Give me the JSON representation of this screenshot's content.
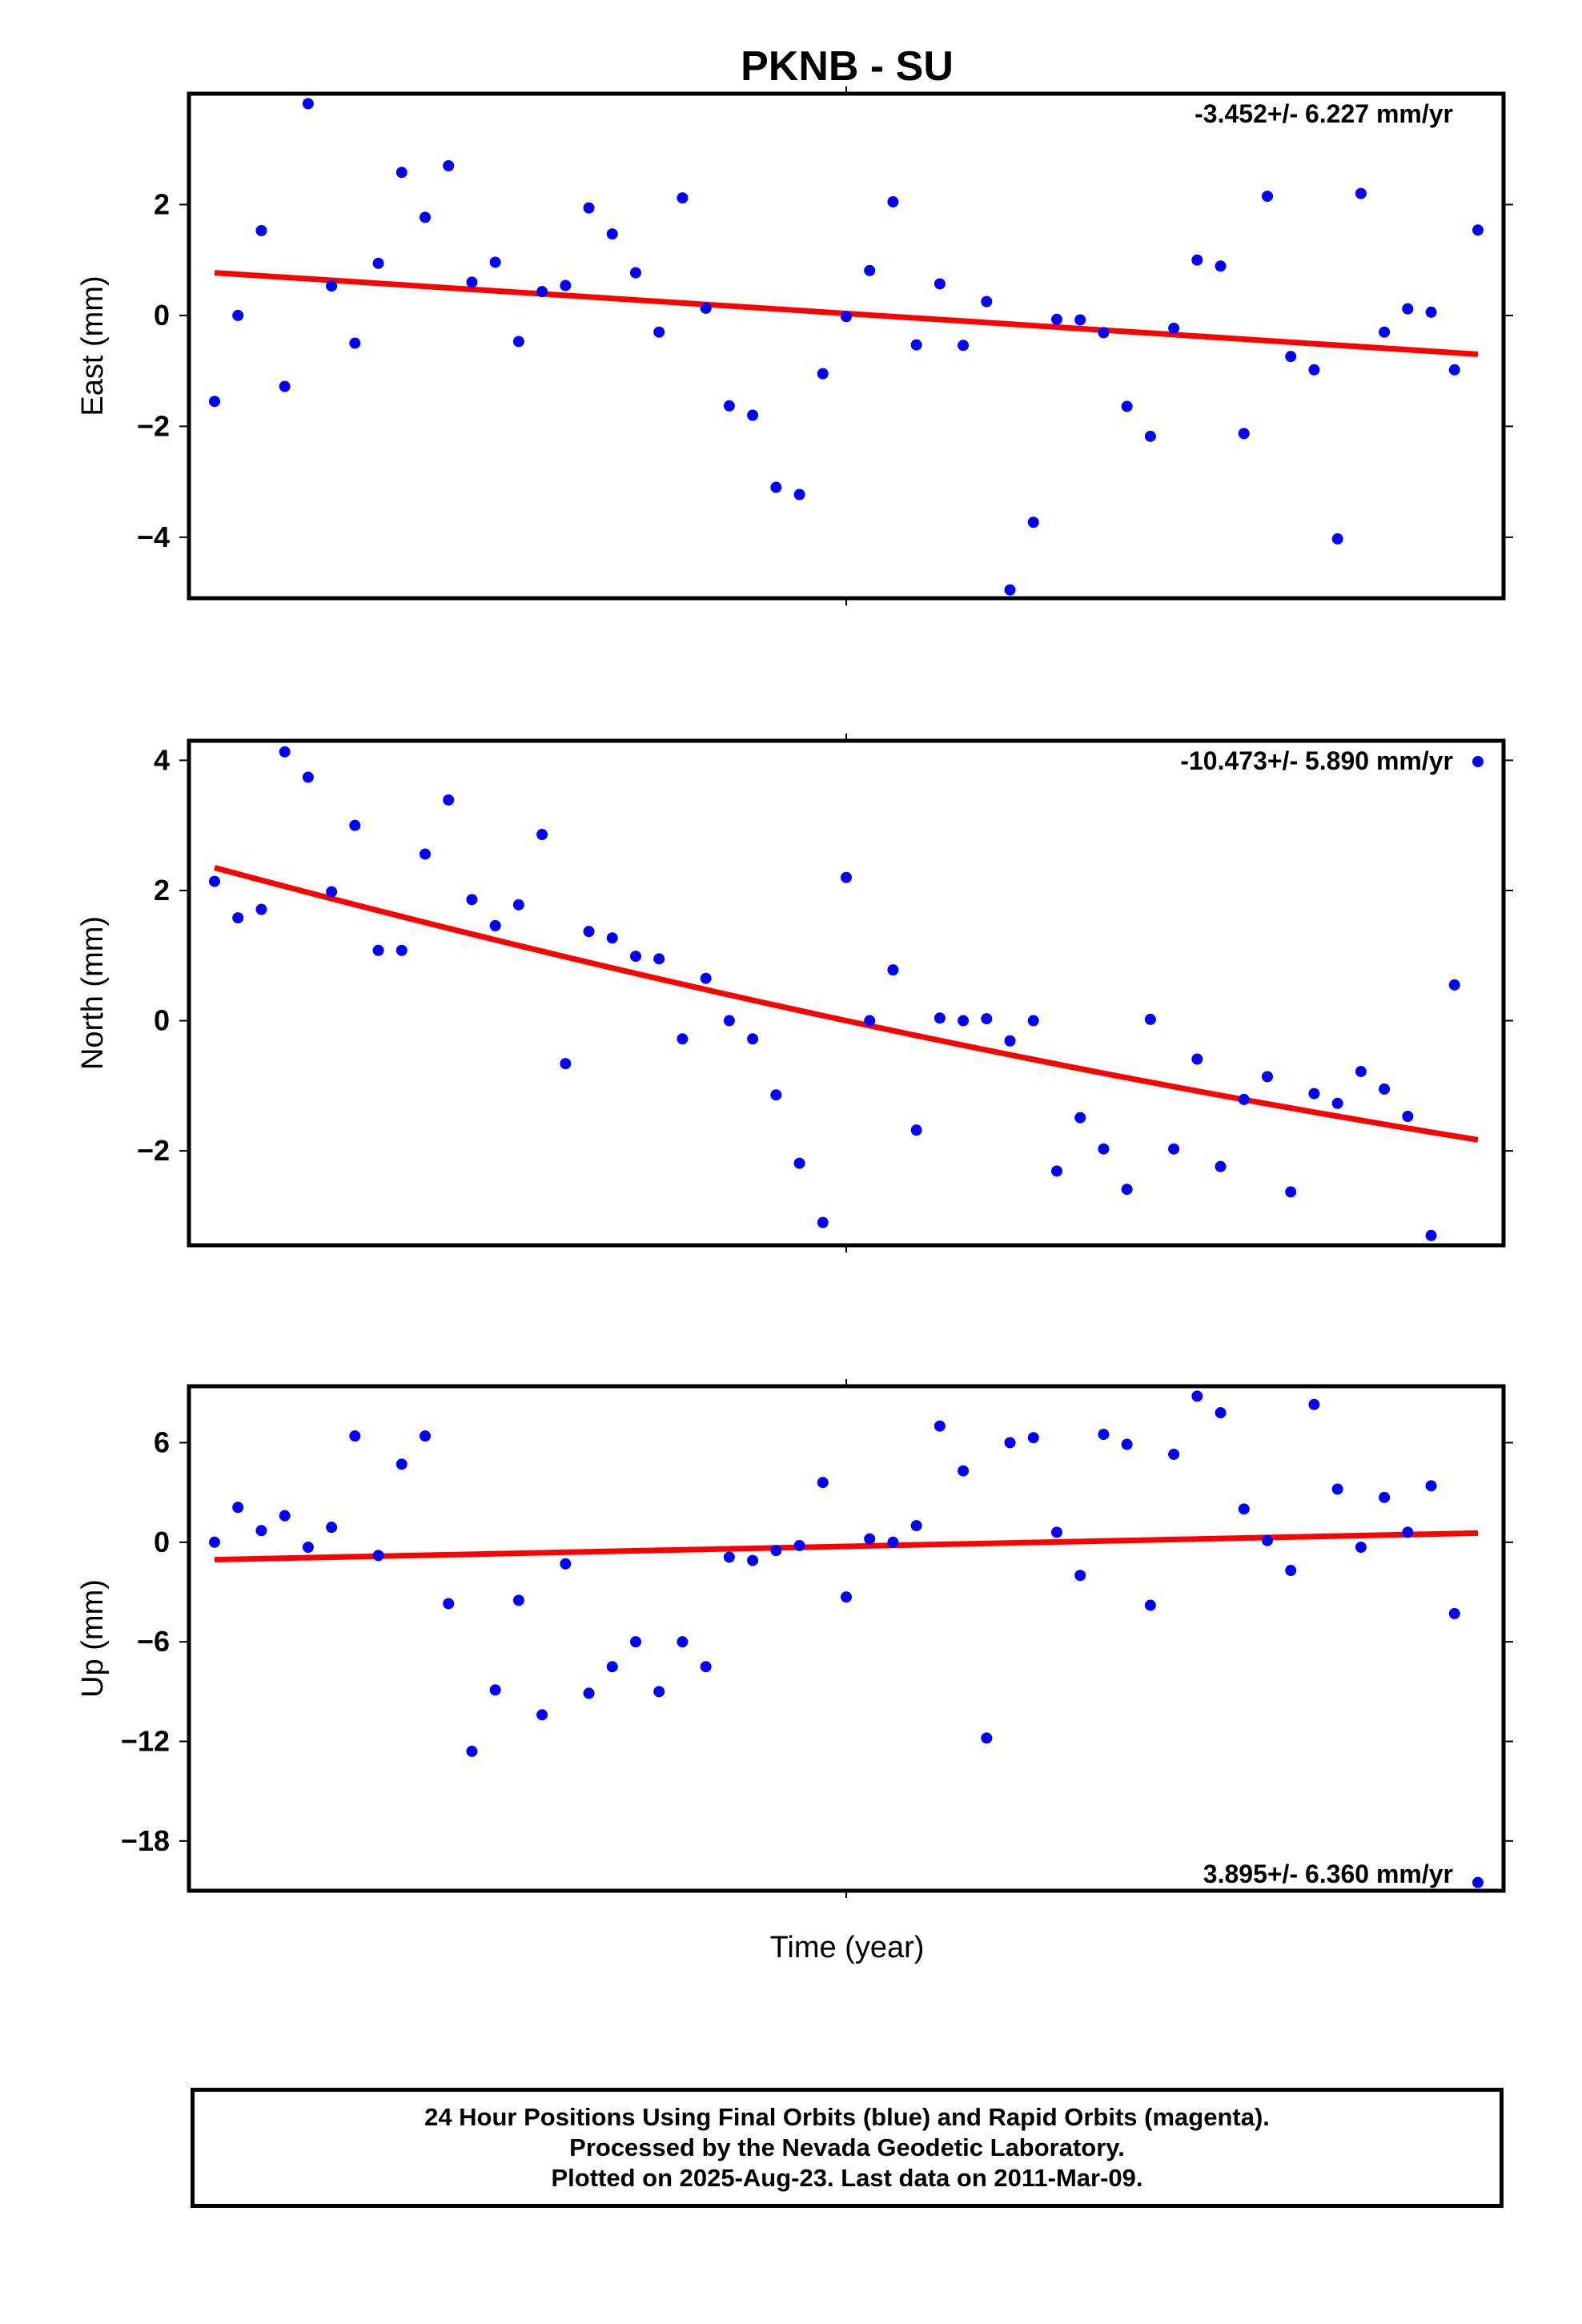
{
  "figure": {
    "title": "PKNB - SU",
    "xlabel": "Time (year)"
  },
  "colors": {
    "final_orbits": "#0000ff",
    "fit_line": "#ff0000",
    "axes": "#000000"
  },
  "footer": {
    "line1": "24 Hour Positions Using Final Orbits (blue) and Rapid Orbits (magenta).",
    "line2": "Processed by the Nevada Geodetic Laboratory.",
    "line3": "Plotted on 2025-Aug-23. Last data on 2011-Mar-09."
  },
  "chart_data": [
    {
      "type": "scatter",
      "panel": "east",
      "ylabel": "East (mm)",
      "rate_label": "-3.452+/- 6.227 mm/yr",
      "ylim": [
        -5.1,
        4.0
      ],
      "yticks": [
        2,
        0,
        -2,
        -4
      ],
      "x_ticks": [],
      "series": [
        {
          "name": "Final Orbits (blue)",
          "values": [
            -1.55,
            0.0,
            1.53,
            -1.28,
            3.82,
            0.53,
            -0.5,
            0.94,
            2.58,
            1.77,
            2.7,
            0.6,
            0.96,
            -0.47,
            0.43,
            0.54,
            1.94,
            1.47,
            0.77,
            -0.3,
            2.12,
            0.13,
            -1.63,
            -1.8,
            -3.1,
            -3.23,
            -1.05,
            -0.02,
            0.81,
            2.05,
            -0.53,
            0.57,
            -0.54,
            0.25,
            -4.95,
            -3.73,
            -0.07,
            -0.08,
            -0.31,
            -1.64,
            -2.18,
            -0.23,
            1.0,
            0.89,
            -2.13,
            2.15,
            -0.74,
            -0.98,
            -4.03,
            2.2,
            -0.3,
            0.12,
            0.06,
            -0.98,
            1.54
          ]
        }
      ],
      "fit": {
        "start": 0.77,
        "end": -0.7
      }
    },
    {
      "type": "scatter",
      "panel": "north",
      "ylabel": "North (mm)",
      "rate_label": "-10.473+/- 5.890 mm/yr",
      "ylim": [
        -3.45,
        4.3
      ],
      "yticks": [
        4,
        2,
        0,
        -2
      ],
      "x_ticks": [],
      "series": [
        {
          "name": "Final Orbits (blue)",
          "values": [
            2.14,
            1.58,
            1.71,
            4.13,
            3.74,
            1.98,
            3.0,
            1.08,
            1.08,
            2.56,
            3.39,
            1.86,
            1.46,
            1.78,
            2.86,
            -0.66,
            1.37,
            1.27,
            0.99,
            0.95,
            -0.28,
            0.65,
            0.0,
            -0.28,
            -1.14,
            -2.19,
            -3.1,
            2.2,
            0.0,
            0.78,
            -1.68,
            0.04,
            0.0,
            0.03,
            -0.31,
            0.0,
            -2.31,
            -1.49,
            -1.97,
            -2.59,
            0.02,
            -1.97,
            -0.59,
            -2.24,
            -1.21,
            -0.86,
            -2.63,
            -1.12,
            -1.27,
            -0.78,
            -1.05,
            -1.47,
            -3.3,
            0.55,
            3.98
          ]
        }
      ],
      "fit": {
        "start": 2.35,
        "mid": 0.0,
        "end": -1.83
      }
    },
    {
      "type": "scatter",
      "panel": "up",
      "ylabel": "Up (mm)",
      "rate_label": "3.895+/- 6.360 mm/yr",
      "ylim": [
        -21.0,
        9.4
      ],
      "yticks": [
        6,
        0,
        -6,
        -12,
        -18
      ],
      "x_ticks": [],
      "series": [
        {
          "name": "Final Orbits (blue)",
          "values": [
            0.0,
            2.1,
            0.7,
            1.6,
            -0.3,
            0.9,
            6.4,
            -0.8,
            4.7,
            6.4,
            -3.7,
            -12.6,
            -8.9,
            -3.5,
            -10.4,
            -1.3,
            -9.1,
            -7.5,
            -6.0,
            -9.0,
            -6.0,
            -7.5,
            -0.9,
            -1.1,
            -0.5,
            -0.2,
            3.6,
            -3.3,
            0.2,
            0.0,
            1.0,
            7.0,
            4.3,
            -11.8,
            6.0,
            6.3,
            0.6,
            -2.0,
            6.5,
            5.9,
            -3.8,
            5.3,
            8.8,
            7.8,
            2.0,
            0.1,
            -1.7,
            8.3,
            3.2,
            -0.3,
            2.7,
            0.6,
            3.4,
            -4.3,
            -20.5
          ]
        }
      ],
      "fit": {
        "start": -1.05,
        "end": 0.55
      }
    }
  ]
}
